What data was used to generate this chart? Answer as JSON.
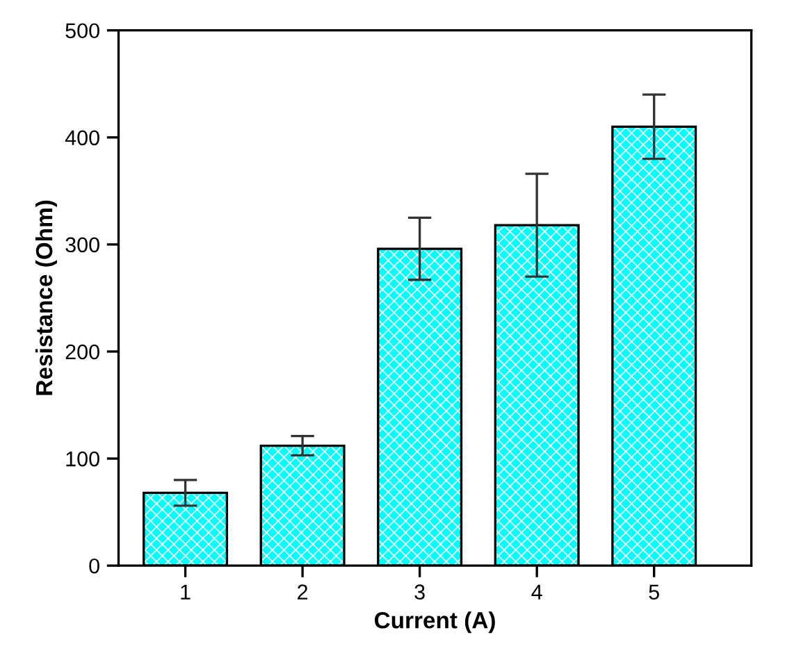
{
  "chart_data": {
    "type": "bar",
    "xlabel": "Current (A)",
    "ylabel": "Resistance (Ohm)",
    "categories": [
      "1",
      "2",
      "3",
      "4",
      "5"
    ],
    "values": [
      68,
      112,
      296,
      318,
      410
    ],
    "errors": [
      12,
      9,
      29,
      48,
      30
    ],
    "color": "#00ffff",
    "ylim": [
      0,
      500
    ],
    "yticks": [
      0,
      100,
      200,
      300,
      400,
      500
    ],
    "grid": false,
    "legend": false
  }
}
